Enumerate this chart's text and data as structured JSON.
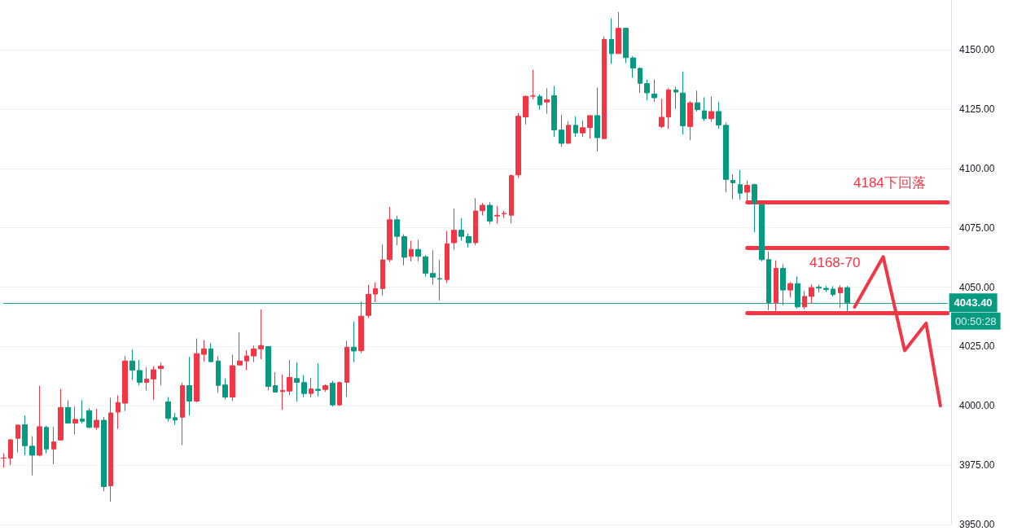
{
  "chart_data": {
    "type": "candlestick",
    "categories": [
      null,
      null,
      null,
      null,
      null,
      null,
      null,
      null,
      null,
      null,
      null,
      null,
      null,
      null,
      null,
      null,
      null,
      null,
      null,
      null,
      null,
      null,
      null,
      null,
      null,
      null,
      null,
      null,
      null,
      null,
      null,
      null,
      null,
      null,
      null,
      null,
      null,
      null,
      null,
      null,
      null,
      null,
      null,
      null,
      null,
      null,
      null,
      null,
      null,
      null,
      null,
      null,
      null,
      null,
      null,
      null,
      null,
      null,
      null,
      null,
      null,
      null,
      null,
      null,
      null,
      null,
      null,
      null,
      null,
      null,
      null,
      null,
      null,
      null,
      null,
      null,
      null,
      null,
      null,
      null,
      null,
      null,
      null,
      null,
      null,
      null,
      null,
      null,
      null,
      null,
      null,
      null,
      null,
      null,
      null,
      null,
      null,
      null,
      null,
      null,
      null,
      null,
      null,
      null,
      null,
      null,
      null,
      null,
      null,
      null,
      null,
      null,
      null,
      null,
      null,
      null,
      null,
      null,
      null,
      null,
      null,
      null,
      null,
      null,
      null,
      null,
      null,
      null,
      null,
      null,
      null,
      null,
      null
    ],
    "series": [
      {
        "ohlc": [
          [
            3978,
            3980,
            3974,
            3978
          ],
          [
            3978,
            3986,
            3975,
            3985.7
          ],
          [
            3986.3,
            3992,
            3980.4,
            3991.9
          ],
          [
            3992,
            3995.9,
            3979.2,
            3983.2
          ],
          [
            3983,
            3987.2,
            3970.7,
            3979.2
          ],
          [
            3979.2,
            4008.5,
            3978.7,
            3991.2
          ],
          [
            3990.9,
            3991.6,
            3980,
            3981.8
          ],
          [
            3981.8,
            3991.2,
            3975.4,
            3984.8
          ],
          [
            3985.6,
            4007.1,
            3985.6,
            3999.3
          ],
          [
            3999.3,
            4002.4,
            3992.7,
            3992.7
          ],
          [
            3992.7,
            3999.7,
            3987.9,
            3994.3
          ],
          [
            3994.5,
            4002.4,
            3992.7,
            3993.5
          ],
          [
            3998,
            3999,
            3990.6,
            3990.9
          ],
          [
            3990.9,
            3998.7,
            3989.9,
            3993.9
          ],
          [
            3993.9,
            3995.3,
            3964,
            3966
          ],
          [
            3966.3,
            4003.4,
            3959.6,
            3997
          ],
          [
            3997.4,
            4004.4,
            3990.3,
            4001.4
          ],
          [
            4001.1,
            4021,
            3997.8,
            4018.9
          ],
          [
            4018.9,
            4023.7,
            4010.9,
            4015
          ],
          [
            4014.9,
            4019.3,
            4008.6,
            4009.9
          ],
          [
            4009.9,
            4016.2,
            4006.5,
            4011.3
          ],
          [
            4011.3,
            4016.7,
            4002.5,
            4015.2
          ],
          [
            4015.7,
            4018.3,
            4008.6,
            4016.7
          ],
          [
            4001.7,
            4003.7,
            3993.4,
            3994.7
          ],
          [
            3995,
            3997,
            3992,
            3994
          ],
          [
            3995.2,
            4009.8,
            3983.4,
            4008.5
          ],
          [
            4008.5,
            4020.6,
            3995.9,
            4002
          ],
          [
            4002,
            4028.4,
            4001.5,
            4022
          ],
          [
            4021.7,
            4027.7,
            4018.7,
            4024
          ],
          [
            4024,
            4026.4,
            4018.4,
            4018.6
          ],
          [
            4018.9,
            4021,
            4005.4,
            4008.6
          ],
          [
            4008.8,
            4011.5,
            4002.7,
            4003.7
          ],
          [
            4003.7,
            4021.6,
            4002,
            4016.9
          ],
          [
            4017.2,
            4030.9,
            4017.2,
            4018.9
          ],
          [
            4018.9,
            4023.4,
            4015,
            4021
          ],
          [
            4021,
            4025.4,
            4018.4,
            4024
          ],
          [
            4024,
            4040.6,
            4019.6,
            4025.4
          ],
          [
            4025,
            4025,
            4006.5,
            4008.2
          ],
          [
            4008.5,
            4014.2,
            4005.8,
            4005.8
          ],
          [
            4006,
            4013.2,
            3998.3,
            4006.5
          ],
          [
            4006.2,
            4019.3,
            4004.5,
            4012
          ],
          [
            4011.5,
            4018.3,
            4001.8,
            4009.9
          ],
          [
            4009.8,
            4012.9,
            4003.7,
            4005.2
          ],
          [
            4005.2,
            4011.8,
            4003.5,
            4007.1
          ],
          [
            4007,
            4017.9,
            4004,
            4006.5
          ],
          [
            4006.9,
            4009.1,
            4005.9,
            4008.5
          ],
          [
            4009.5,
            4010.5,
            3999.7,
            4000.4
          ],
          [
            4000.4,
            4010.2,
            4000,
            4009.8
          ],
          [
            4009.9,
            4027.4,
            4003.7,
            4024.7
          ],
          [
            4024.7,
            4035.5,
            4018.4,
            4023.1
          ],
          [
            4023.2,
            4044,
            4022.3,
            4037.8
          ],
          [
            4038.1,
            4051,
            4037,
            4047
          ],
          [
            4047.1,
            4052,
            4043.7,
            4049.4
          ],
          [
            4049.4,
            4067.9,
            4046.4,
            4061.5
          ],
          [
            4061.6,
            4083.8,
            4060.6,
            4078.4
          ],
          [
            4078.4,
            4080.1,
            4067.7,
            4071.4
          ],
          [
            4071.3,
            4072.3,
            4059.2,
            4062.6
          ],
          [
            4063,
            4069.6,
            4060.9,
            4065.9
          ],
          [
            4065.9,
            4069.9,
            4060.9,
            4063
          ],
          [
            4062.8,
            4063.5,
            4054.5,
            4055.9
          ],
          [
            4055.8,
            4065.6,
            4051.1,
            4054.2
          ],
          [
            4053.6,
            4061.5,
            4044.4,
            4053.4
          ],
          [
            4053.2,
            4073.7,
            4051.8,
            4068.3
          ],
          [
            4068.7,
            4083.1,
            4065.7,
            4074
          ],
          [
            4074,
            4079.1,
            4069.6,
            4071.4
          ],
          [
            4071.3,
            4072.6,
            4066.7,
            4068.7
          ],
          [
            4068.7,
            4087.5,
            4067.7,
            4082.1
          ],
          [
            4082.2,
            4085.5,
            4080.2,
            4084.5
          ],
          [
            4084.5,
            4085.8,
            4076.6,
            4077.8
          ],
          [
            4080,
            4084.2,
            4076.8,
            4080.3
          ],
          [
            4080.9,
            4082.2,
            4079.2,
            4081.1
          ],
          [
            4080.3,
            4097.5,
            4076.8,
            4097
          ],
          [
            4097.3,
            4123.3,
            4096,
            4122
          ],
          [
            4121.7,
            4130.8,
            4118.6,
            4130.4
          ],
          [
            4130.5,
            4141.6,
            4129.2,
            4130.6
          ],
          [
            4130.4,
            4131.2,
            4124.8,
            4126.8
          ],
          [
            4128,
            4133.8,
            4123.1,
            4129
          ],
          [
            4130.7,
            4134.8,
            4113.3,
            4116.3
          ],
          [
            4116.2,
            4122.6,
            4109.2,
            4110.6
          ],
          [
            4110.6,
            4119.9,
            4110.6,
            4118.2
          ],
          [
            4118.2,
            4122,
            4113.3,
            4115
          ],
          [
            4115,
            4120.3,
            4113.3,
            4117.2
          ],
          [
            4117.3,
            4122.3,
            4112.6,
            4122.3
          ],
          [
            4122.3,
            4134.1,
            4107.2,
            4113
          ],
          [
            4112.6,
            4155.7,
            4112.6,
            4154.4
          ],
          [
            4154.4,
            4163.2,
            4144,
            4148.4
          ],
          [
            4148.4,
            4165.9,
            4148.4,
            4159.1
          ],
          [
            4159.1,
            4159.1,
            4144.4,
            4146.7
          ],
          [
            4146.6,
            4147.3,
            4138.3,
            4142.3
          ],
          [
            4142.2,
            4142.6,
            4131.9,
            4135.9
          ],
          [
            4135.8,
            4137.5,
            4128.8,
            4131.9
          ],
          [
            4131.4,
            4137.5,
            4128.1,
            4129.8
          ],
          [
            4117.7,
            4129.4,
            4117,
            4121.6
          ],
          [
            4121.7,
            4133.8,
            4116.7,
            4133.1
          ],
          [
            4133.1,
            4134.5,
            4125.1,
            4132.2
          ],
          [
            4131.8,
            4140.9,
            4114.3,
            4118
          ],
          [
            4117.7,
            4128.4,
            4111.9,
            4127.7
          ],
          [
            4127.7,
            4132.8,
            4124,
            4124.8
          ],
          [
            4124.3,
            4130,
            4120,
            4121
          ],
          [
            4121,
            4130.4,
            4119.7,
            4124
          ],
          [
            4124,
            4128,
            4116.7,
            4118.3
          ],
          [
            4118.2,
            4119.3,
            4090,
            4095.4
          ],
          [
            4095,
            4097.6,
            4087,
            4094
          ],
          [
            4093.2,
            4099.3,
            4086.9,
            4089.6
          ],
          [
            4090,
            4094.9,
            4086,
            4092.9
          ],
          [
            4093.2,
            4093.6,
            4073.2,
            4085.4
          ],
          [
            4084.8,
            4085,
            4060.9,
            4061.6
          ],
          [
            4061.6,
            4065,
            4040.3,
            4043.5
          ],
          [
            4043.5,
            4061.3,
            4040,
            4057.9
          ],
          [
            4057.9,
            4059.6,
            4042.3,
            4048.8
          ],
          [
            4048.8,
            4052.1,
            4045.7,
            4051.5
          ],
          [
            4051.5,
            4054.5,
            4041,
            4041.7
          ],
          [
            4041.7,
            4048.4,
            4040.7,
            4046.1
          ],
          [
            4046.1,
            4051.1,
            4043,
            4049.8
          ],
          [
            4050,
            4051.1,
            4047.8,
            4049.6
          ],
          [
            4049.5,
            4050.5,
            4048,
            4049
          ],
          [
            4049.2,
            4050.4,
            4046,
            4046.9
          ],
          [
            4047.6,
            4050.8,
            4041.3,
            4049.8
          ],
          [
            4049.8,
            4050.5,
            4039.8,
            4043.4
          ],
          null,
          null,
          null,
          null,
          null,
          null,
          null,
          null,
          null,
          null,
          null,
          null,
          null,
          null
        ],
        "colors": [
          "#f23645",
          "#f23645",
          "#f23645",
          "#089981",
          "#089981",
          "#f23645",
          "#089981",
          "#f23645",
          "#f23645",
          "#089981",
          "#f23645",
          "#089981",
          "#089981",
          "#f23645",
          "#089981",
          "#f23645",
          "#f23645",
          "#f23645",
          "#089981",
          "#089981",
          "#f23645",
          "#f23645",
          "#f23645",
          "#089981",
          "#089981",
          "#f23645",
          "#089981",
          "#f23645",
          "#f23645",
          "#089981",
          "#089981",
          "#089981",
          "#f23645",
          "#f23645",
          "#f23645",
          "#f23645",
          "#f23645",
          "#089981",
          "#089981",
          "#f23645",
          "#f23645",
          "#089981",
          "#089981",
          "#f23645",
          "#089981",
          "#f23645",
          "#089981",
          "#f23645",
          "#f23645",
          "#089981",
          "#f23645",
          "#f23645",
          "#f23645",
          "#f23645",
          "#f23645",
          "#089981",
          "#089981",
          "#f23645",
          "#089981",
          "#089981",
          "#089981",
          "#089981",
          "#f23645",
          "#f23645",
          "#089981",
          "#089981",
          "#f23645",
          "#f23645",
          "#089981",
          "#f23645",
          "#f23645",
          "#f23645",
          "#f23645",
          "#f23645",
          "#f23645",
          "#089981",
          "#f23645",
          "#089981",
          "#089981",
          "#f23645",
          "#089981",
          "#f23645",
          "#f23645",
          "#089981",
          "#f23645",
          "#089981",
          "#f23645",
          "#089981",
          "#089981",
          "#089981",
          "#089981",
          "#089981",
          "#f23645",
          "#f23645",
          "#089981",
          "#089981",
          "#f23645",
          "#089981",
          "#089981",
          "#f23645",
          "#089981",
          "#089981",
          "#089981",
          "#089981",
          "#f23645",
          "#089981",
          "#089981",
          "#089981",
          "#f23645",
          "#089981",
          "#f23645",
          "#089981",
          "#f23645",
          "#f23645",
          "#089981",
          "#089981",
          "#089981",
          "#f23645",
          "#089981",
          null,
          null,
          null,
          null,
          null,
          null,
          null,
          null,
          null,
          null,
          null,
          null,
          null,
          null
        ]
      },
      {
        "type": "line",
        "color": "#f23645",
        "values": [
          null,
          null,
          null,
          null,
          null,
          null,
          null,
          null,
          null,
          null,
          null,
          null,
          null,
          null,
          null,
          null,
          null,
          null,
          null,
          null,
          null,
          null,
          null,
          null,
          null,
          null,
          null,
          null,
          null,
          null,
          null,
          null,
          null,
          null,
          null,
          null,
          null,
          null,
          null,
          null,
          null,
          null,
          null,
          null,
          null,
          null,
          null,
          null,
          null,
          null,
          null,
          null,
          null,
          null,
          null,
          null,
          null,
          null,
          null,
          null,
          null,
          null,
          null,
          null,
          null,
          null,
          null,
          null,
          null,
          null,
          null,
          null,
          null,
          null,
          null,
          null,
          null,
          null,
          null,
          null,
          null,
          null,
          null,
          null,
          null,
          null,
          null,
          null,
          null,
          null,
          null,
          null,
          null,
          null,
          null,
          null,
          null,
          null,
          null,
          null,
          null,
          null,
          null,
          null,
          null,
          null,
          null,
          null,
          null,
          null,
          null,
          null,
          null,
          null,
          null,
          null,
          null,
          null,
          null,
          4041.6,
          null,
          null,
          null,
          4062.8,
          null,
          null,
          4023.3,
          null,
          null,
          4034.8,
          null,
          4000,
          null
        ]
      }
    ],
    "ylim": [
      3950,
      4171
    ],
    "yticks": [
      {
        "value": 3950,
        "label": "3950.00"
      },
      {
        "value": 3975,
        "label": "3975.00"
      },
      {
        "value": 4000,
        "label": "4000.00"
      },
      {
        "value": 4025,
        "label": "4025.00"
      },
      {
        "value": 4050,
        "label": "4050.00"
      },
      {
        "value": 4075,
        "label": "4075.00"
      },
      {
        "value": 4100,
        "label": "4100.00"
      },
      {
        "value": 4125,
        "label": "4125.00"
      },
      {
        "value": 4150,
        "label": "4150.00"
      }
    ],
    "tick_labels": "y",
    "grid": "y",
    "ref_lines": [
      {
        "axis": "y",
        "value": 4043.4,
        "label": "4043.40",
        "color": "#089981",
        "line_style": "dotted"
      },
      {
        "axis": "y",
        "value": 4085.8,
        "color": "#f23645",
        "line_style": "solid"
      },
      {
        "axis": "y",
        "value": 4066.6,
        "color": "#f23645",
        "line_style": "solid"
      },
      {
        "axis": "y",
        "value": 4039.2,
        "color": "#f23645",
        "line_style": "solid"
      }
    ],
    "annotations": [
      "4184下回落",
      "4168-70",
      "00:50:28"
    ]
  }
}
